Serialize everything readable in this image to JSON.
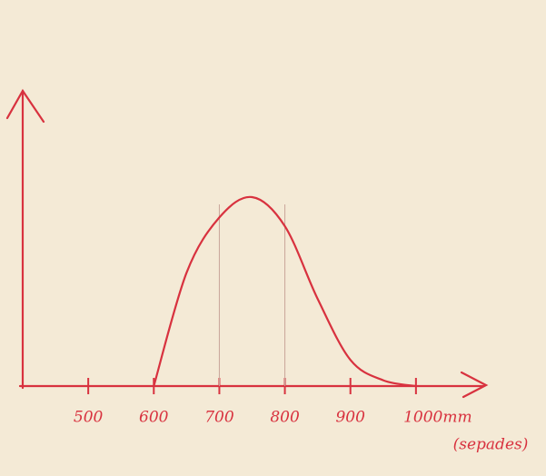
{
  "chart_data": {
    "type": "line",
    "x_label": "(sepades)",
    "x": [
      600,
      650,
      700,
      750,
      800,
      850,
      900,
      950,
      1000
    ],
    "series": [
      {
        "color": "#d8323f",
        "values": [
          0,
          39,
          58,
          65,
          55,
          30,
          9,
          2,
          0
        ]
      }
    ],
    "xlim": [
      400,
      1100
    ],
    "xticks": [
      500,
      600,
      700,
      800,
      900,
      {
        "value": 1000,
        "label": "1000mm"
      }
    ],
    "ylim": [
      0,
      100
    ]
  }
}
